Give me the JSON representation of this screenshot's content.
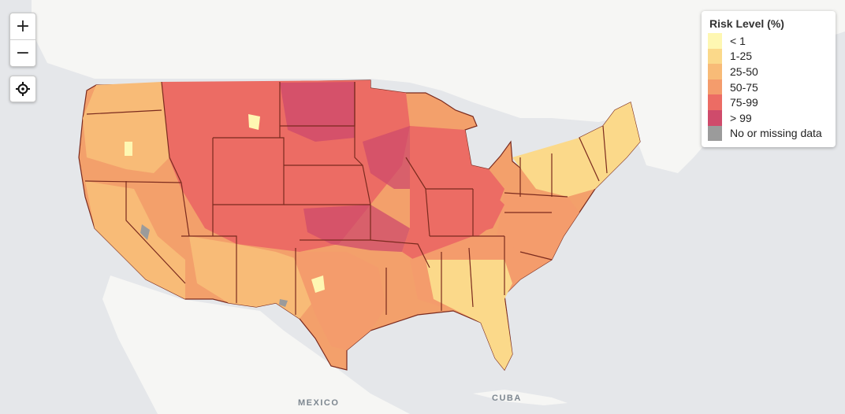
{
  "map": {
    "controls": {
      "zoom_in": "+",
      "zoom_out": "−",
      "locate_icon": "crosshair-icon"
    },
    "legend": {
      "title": "Risk Level (%)",
      "items": [
        {
          "label": "< 1",
          "color": "#fef7b2"
        },
        {
          "label": "1-25",
          "color": "#fbd98a"
        },
        {
          "label": "25-50",
          "color": "#f8bb77"
        },
        {
          "label": "50-75",
          "color": "#f49c6c"
        },
        {
          "label": "75-99",
          "color": "#ec6c64"
        },
        {
          "label": "> 99",
          "color": "#cf4b6b"
        },
        {
          "label": "No or missing data",
          "color": "#9b9b9b"
        }
      ]
    },
    "labels": {
      "mexico": "MEXICO",
      "cuba": "CUBA"
    },
    "colors": {
      "water": "#e5e7ea",
      "land": "#f6f6f4",
      "state_border": "#7a2a1e"
    }
  }
}
